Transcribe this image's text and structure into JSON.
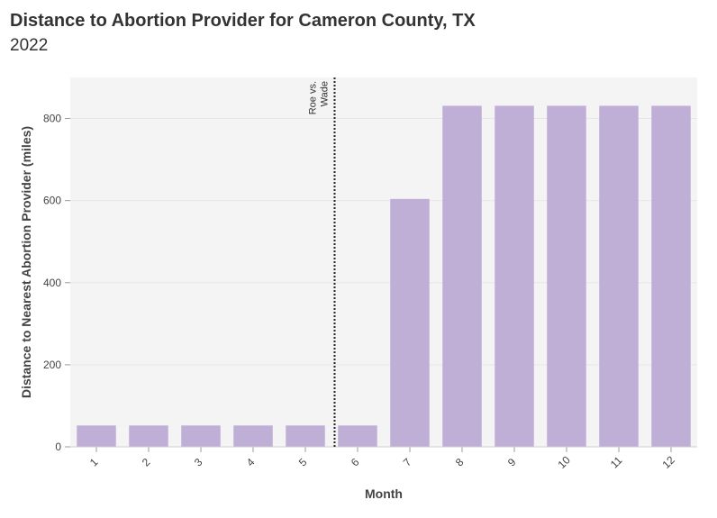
{
  "header": {
    "title": "Distance to Abortion Provider for Cameron County, TX",
    "subtitle": "2022"
  },
  "chart_data": {
    "type": "bar",
    "title": "Distance to Abortion Provider for Cameron County, TX",
    "subtitle": "2022",
    "xlabel": "Month",
    "ylabel": "Distance to Nearest Abortion Provider (miles)",
    "categories": [
      "1",
      "2",
      "3",
      "4",
      "5",
      "6",
      "7",
      "8",
      "9",
      "10",
      "11",
      "12"
    ],
    "values": [
      52,
      52,
      52,
      52,
      52,
      52,
      604,
      831,
      831,
      831,
      831,
      831
    ],
    "ylim": [
      0,
      900
    ],
    "yticks": [
      0,
      200,
      400,
      600,
      800
    ],
    "grid": true,
    "bar_color": "#bfaed6",
    "annotation": {
      "lines": [
        "Roe vs.",
        "Wade"
      ],
      "between_categories": [
        "5",
        "6"
      ]
    }
  }
}
